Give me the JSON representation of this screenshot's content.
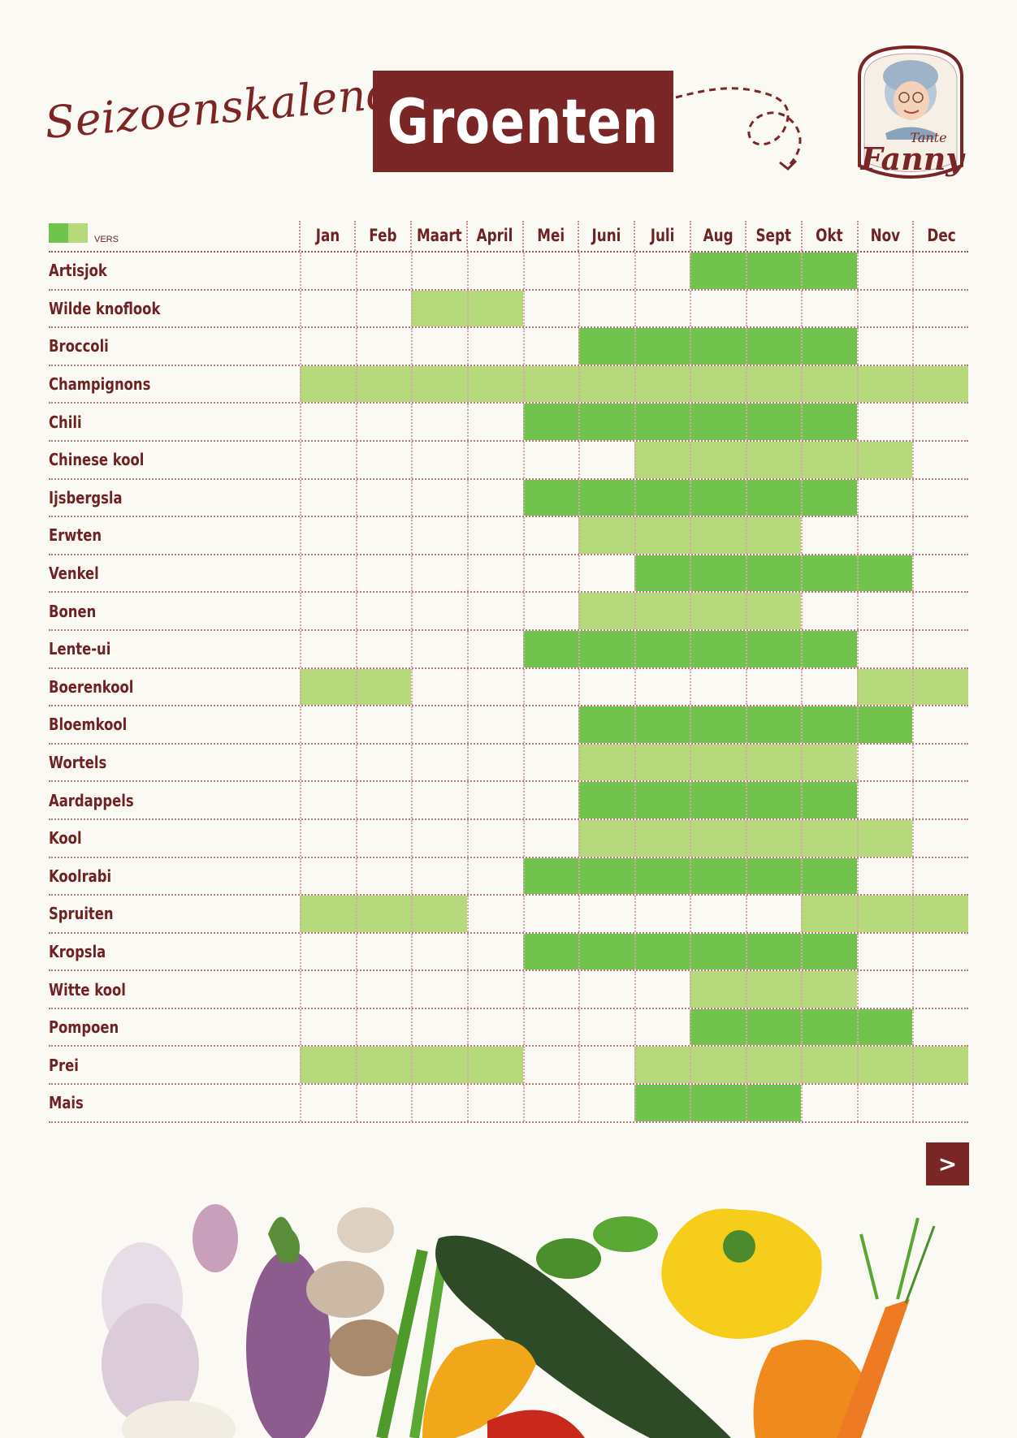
{
  "header": {
    "script_title": "Seizoenskalender",
    "title": "Groenten"
  },
  "logo": {
    "line1": "Tante",
    "line2": "Fanny"
  },
  "legend": {
    "label": "VERS",
    "colors": [
      "#72c24e",
      "#b6d97b"
    ]
  },
  "months": [
    "Jan",
    "Feb",
    "Maart",
    "April",
    "Mei",
    "Juni",
    "Juli",
    "Aug",
    "Sept",
    "Okt",
    "Nov",
    "Dec"
  ],
  "rows": [
    {
      "name": "Artisjok",
      "cells": "-------ddd--"
    },
    {
      "name": "Wilde knoflook",
      "cells": "--ll--------"
    },
    {
      "name": "Broccoli",
      "cells": "-----ddddd--"
    },
    {
      "name": "Champignons",
      "cells": "llllllllllll"
    },
    {
      "name": "Chili",
      "cells": "----dddddd--"
    },
    {
      "name": "Chinese kool",
      "cells": "------lllll-"
    },
    {
      "name": "Ijsbergsla",
      "cells": "----dddddd--"
    },
    {
      "name": "Erwten",
      "cells": "-----llll---"
    },
    {
      "name": "Venkel",
      "cells": "------ddddd-"
    },
    {
      "name": "Bonen",
      "cells": "-----llll---"
    },
    {
      "name": "Lente-ui",
      "cells": "----dddddd--"
    },
    {
      "name": "Boerenkool",
      "cells": "ll--------ll"
    },
    {
      "name": "Bloemkool",
      "cells": "-----dddddd-"
    },
    {
      "name": "Wortels",
      "cells": "-----lllll--"
    },
    {
      "name": "Aardappels",
      "cells": "-----ddddd--"
    },
    {
      "name": "Kool",
      "cells": "-----llllll-"
    },
    {
      "name": "Koolrabi",
      "cells": "----dddddd--"
    },
    {
      "name": "Spruiten",
      "cells": "lll------lll"
    },
    {
      "name": "Kropsla",
      "cells": "----dddddd--"
    },
    {
      "name": "Witte kool",
      "cells": "-------lll--"
    },
    {
      "name": "Pompoen",
      "cells": "-------dddd-"
    },
    {
      "name": "Prei",
      "cells": "llll--llllll"
    },
    {
      "name": "Mais",
      "cells": "------ddd---"
    }
  ],
  "next_button": ">",
  "icons": {
    "next": "chevron-right-icon",
    "logo": "tante-fanny-logo",
    "decor": "dashed-arrow-icon"
  }
}
